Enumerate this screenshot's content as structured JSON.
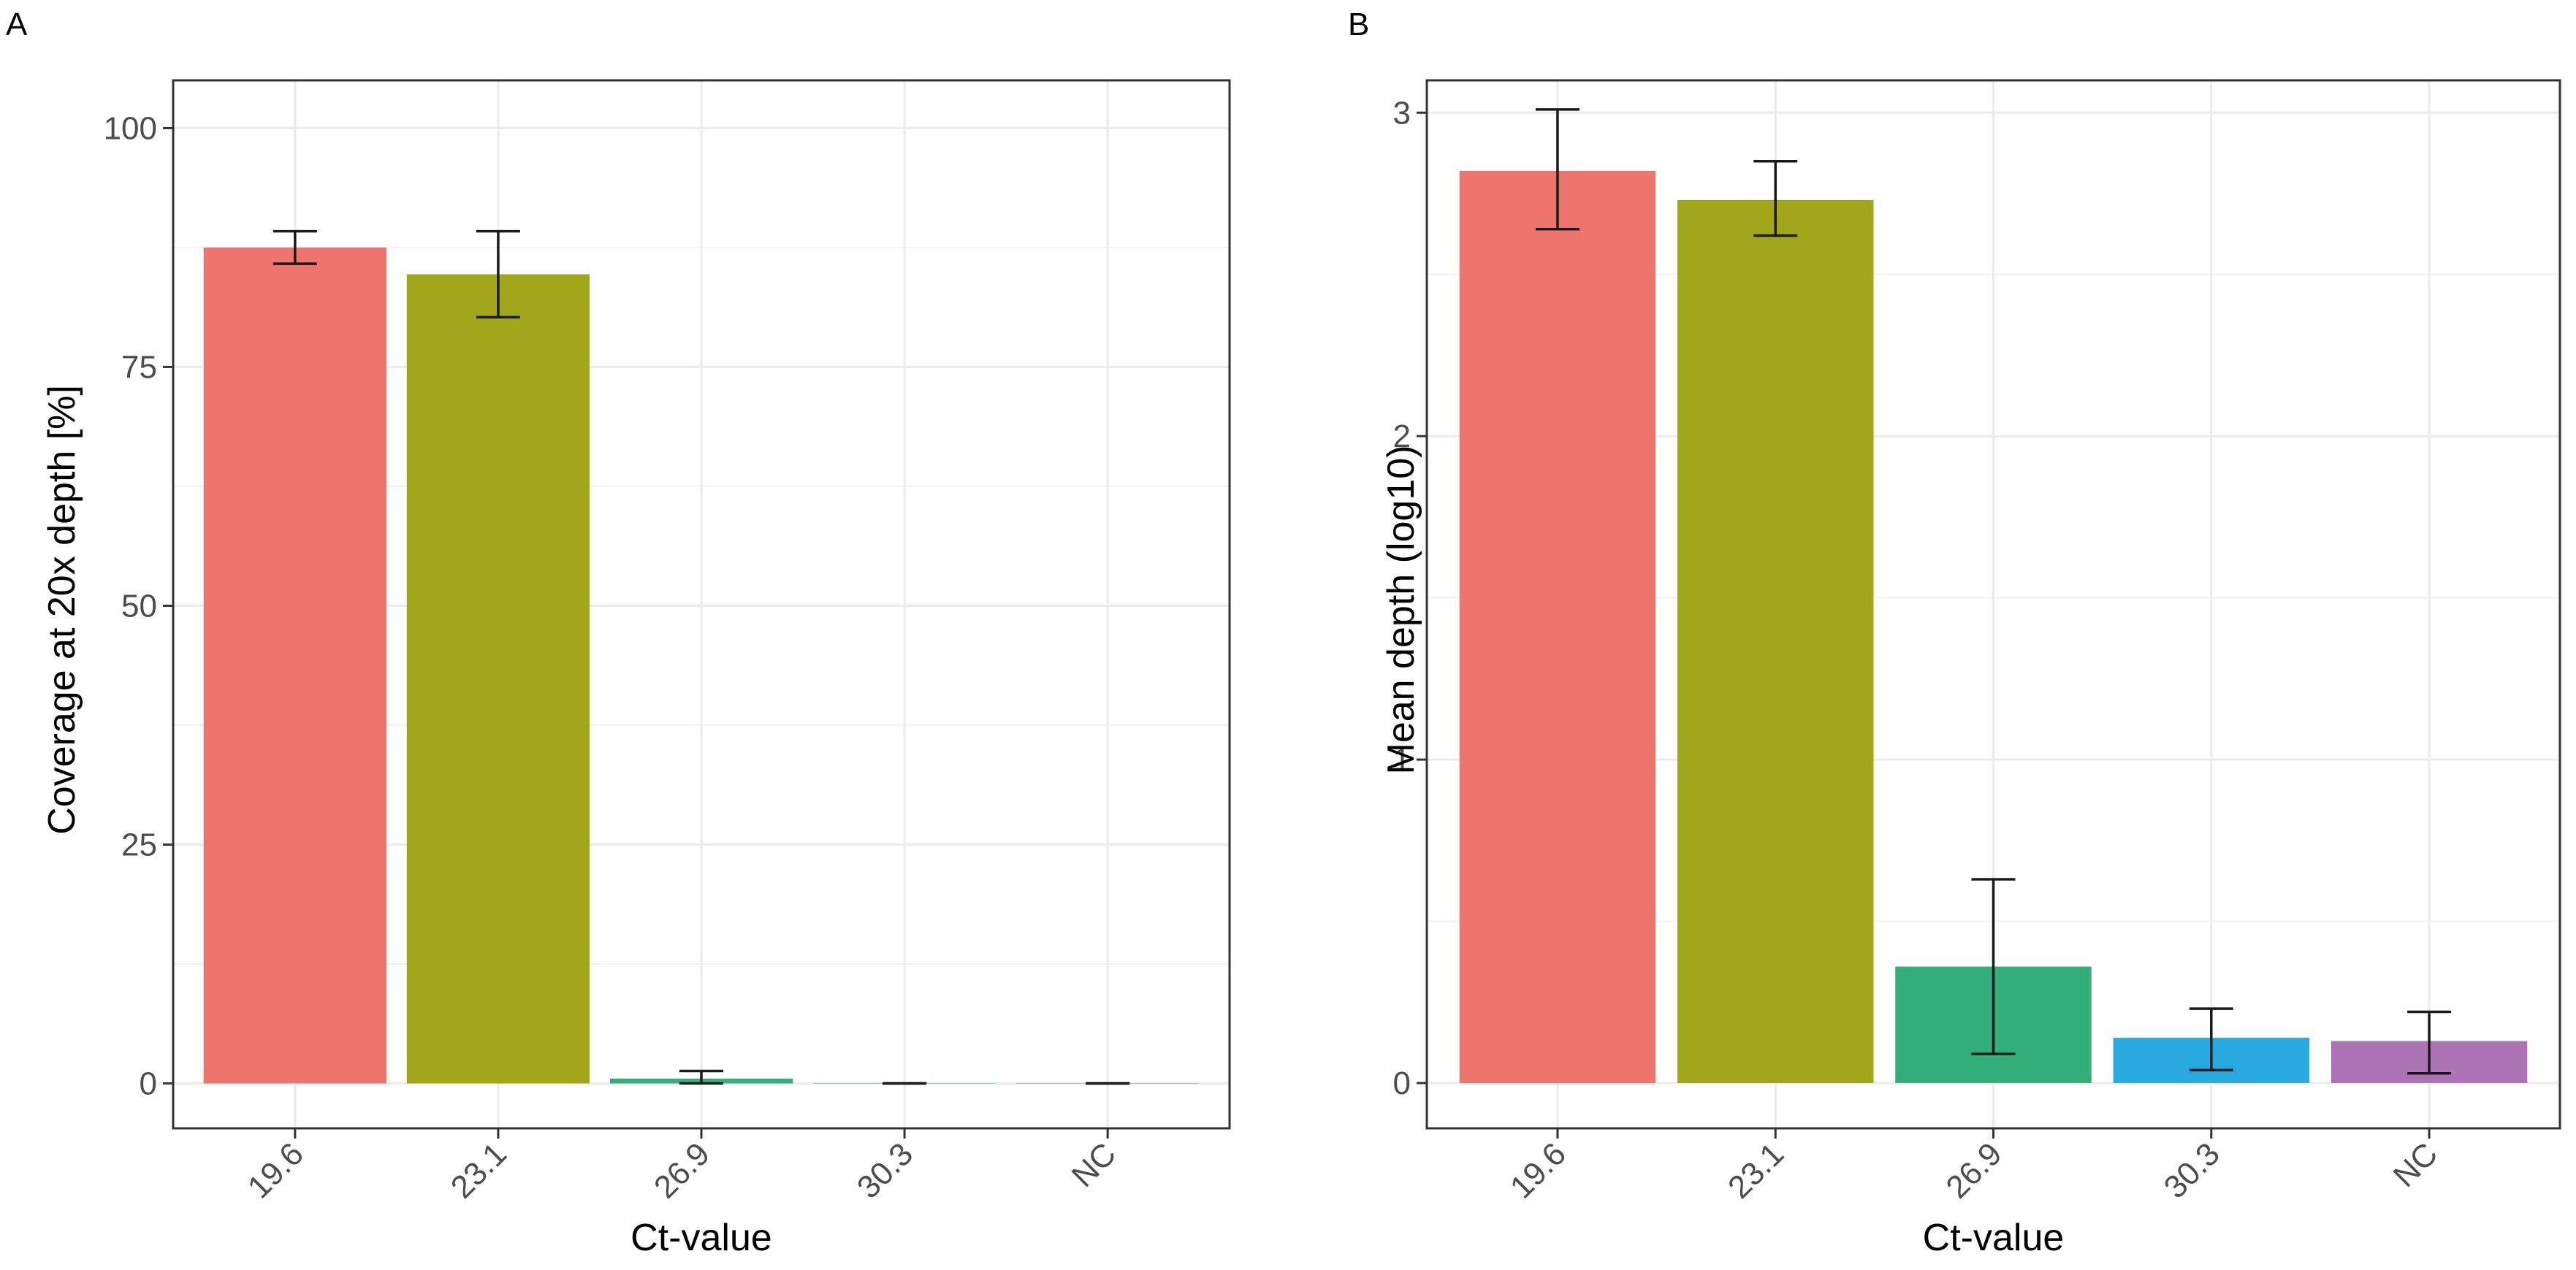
{
  "panels": [
    {
      "label": "A",
      "chart_data": {
        "type": "bar",
        "xlabel": "Ct-value",
        "ylabel": "Coverage at 20x depth [%]",
        "categories": [
          "19.6",
          "23.1",
          "26.9",
          "30.3",
          "NC"
        ],
        "values": [
          87.5,
          84.7,
          0.5,
          0.0,
          0.0
        ],
        "error_low": [
          85.8,
          80.2,
          0.0,
          0.0,
          0.0
        ],
        "error_high": [
          89.2,
          89.2,
          1.3,
          0.0,
          0.0
        ],
        "colors": [
          "#EE756E",
          "#A2A61A",
          "#33B07A",
          "#28A9DF",
          "#AC74B5"
        ],
        "ylim": [
          -4.7,
          105
        ],
        "yticks": [
          0,
          25,
          50,
          75,
          100
        ],
        "ytick_labels": [
          "0",
          "25",
          "50",
          "75",
          "100"
        ],
        "grid": true,
        "legend": "none"
      }
    },
    {
      "label": "B",
      "chart_data": {
        "type": "bar",
        "xlabel": "Ct-value",
        "ylabel": "Mean depth (log10)",
        "categories": [
          "19.6",
          "23.1",
          "26.9",
          "30.3",
          "NC"
        ],
        "values": [
          2.82,
          2.73,
          0.36,
          0.14,
          0.13
        ],
        "error_low": [
          2.64,
          2.62,
          0.09,
          0.04,
          0.03
        ],
        "error_high": [
          3.01,
          2.85,
          0.63,
          0.23,
          0.22
        ],
        "colors": [
          "#EE756E",
          "#A2A61A",
          "#33B07A",
          "#28A9DF",
          "#AC74B5"
        ],
        "ylim": [
          -0.14,
          3.1
        ],
        "yticks": [
          0,
          1,
          2,
          3
        ],
        "ytick_labels": [
          "0",
          "1",
          "2",
          "3"
        ],
        "grid": true,
        "legend": "none"
      }
    }
  ]
}
